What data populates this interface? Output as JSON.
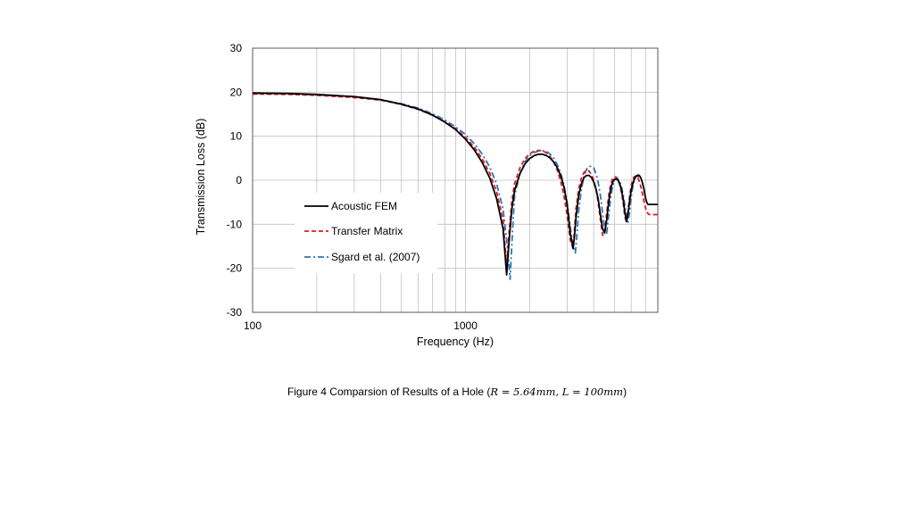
{
  "chart_data": {
    "type": "line",
    "xlabel": "Frequency (Hz)",
    "ylabel": "Transmission Loss (dB)",
    "x_scale": "log",
    "xlim": [
      100,
      8000
    ],
    "ylim": [
      -30,
      30
    ],
    "x_tick_labels": [
      "100",
      "1000"
    ],
    "y_ticks": [
      30,
      20,
      10,
      0,
      -10,
      -20,
      -30
    ],
    "grid": true,
    "legend_position": "lower-left",
    "series": [
      {
        "name": "Acoustic FEM",
        "color": "#000000",
        "style": "solid",
        "x": [
          100,
          150,
          200,
          300,
          400,
          500,
          600,
          700,
          800,
          900,
          1000,
          1100,
          1200,
          1300,
          1400,
          1500,
          1560,
          1600,
          1650,
          1700,
          1800,
          1900,
          2000,
          2100,
          2200,
          2300,
          2400,
          2500,
          2600,
          2700,
          2800,
          2900,
          3000,
          3100,
          3200,
          3250,
          3300,
          3400,
          3500,
          3600,
          3700,
          3800,
          3900,
          4000,
          4100,
          4200,
          4300,
          4400,
          4500,
          4600,
          4700,
          4800,
          4900,
          5000,
          5100,
          5200,
          5300,
          5400,
          5500,
          5600,
          5700,
          5800,
          5900,
          6000,
          6100,
          6200,
          6300,
          6400,
          6500,
          6600,
          6700,
          6800,
          6900,
          7000,
          7100,
          7200,
          7300,
          7400,
          7500,
          7600,
          7700,
          7800,
          7900,
          8000
        ],
        "y": [
          19.8,
          19.7,
          19.5,
          19.0,
          18.3,
          17.3,
          16.2,
          14.8,
          13.2,
          11.5,
          9.3,
          6.9,
          4.0,
          0.5,
          -4.2,
          -11.0,
          -21.5,
          -14.0,
          -6.5,
          -2.3,
          1.5,
          3.7,
          4.9,
          5.6,
          5.9,
          5.9,
          5.6,
          5.0,
          4.1,
          2.8,
          1.0,
          -1.6,
          -5.5,
          -12.0,
          -15.5,
          -12.5,
          -8.5,
          -3.5,
          -0.8,
          0.6,
          1.1,
          1.1,
          0.6,
          -0.4,
          -2.0,
          -4.3,
          -7.8,
          -11.0,
          -12.0,
          -9.0,
          -5.0,
          -2.0,
          -0.5,
          0.2,
          0.3,
          0.0,
          -0.8,
          -2.2,
          -4.3,
          -7.2,
          -9.4,
          -7.5,
          -4.5,
          -2.2,
          -0.8,
          0.2,
          0.8,
          1.1,
          1.2,
          0.9,
          0.2,
          -0.9,
          -2.3,
          -4.0,
          -5.0,
          -5.5,
          -5.5,
          -5.5,
          -5.5,
          -5.5,
          -5.5,
          -5.5,
          -5.5,
          -5.5
        ]
      },
      {
        "name": "Transfer Matrix",
        "color": "#e0191e",
        "style": "dashed",
        "x": [
          100,
          150,
          200,
          300,
          400,
          500,
          600,
          700,
          800,
          900,
          1000,
          1100,
          1200,
          1300,
          1400,
          1500,
          1560,
          1600,
          1650,
          1700,
          1800,
          1900,
          2000,
          2100,
          2200,
          2300,
          2400,
          2500,
          2600,
          2700,
          2800,
          2900,
          3000,
          3100,
          3200,
          3250,
          3300,
          3400,
          3500,
          3600,
          3700,
          3800,
          3900,
          4000,
          4100,
          4200,
          4300,
          4400,
          4500,
          4600,
          4700,
          4800,
          4900,
          5000,
          5100,
          5200,
          5300,
          5400,
          5500,
          5600,
          5700,
          5800,
          5900,
          6000,
          6100,
          6200,
          6300,
          6400,
          6500,
          6600,
          6700,
          6800,
          6900,
          7000,
          7100,
          7200,
          7300,
          7400,
          7500,
          7600,
          7700,
          7800,
          7900,
          8000
        ],
        "y": [
          19.6,
          19.5,
          19.3,
          18.8,
          18.2,
          17.2,
          16.1,
          14.8,
          13.3,
          11.7,
          9.7,
          7.5,
          4.8,
          1.6,
          -2.6,
          -9.0,
          -19.5,
          -12.0,
          -4.8,
          -0.8,
          2.8,
          4.9,
          6.0,
          6.6,
          6.8,
          6.7,
          6.2,
          5.3,
          4.0,
          2.2,
          -0.3,
          -3.5,
          -8.0,
          -13.5,
          -15.5,
          -11.0,
          -6.5,
          -2.0,
          0.5,
          1.8,
          2.2,
          2.1,
          1.3,
          0.0,
          -2.0,
          -5.0,
          -9.0,
          -12.5,
          -12.0,
          -7.5,
          -3.5,
          -1.0,
          0.3,
          0.8,
          0.7,
          0.2,
          -1.0,
          -2.8,
          -5.2,
          -8.2,
          -9.6,
          -6.8,
          -3.5,
          -1.2,
          0.2,
          0.8,
          1.0,
          0.8,
          0.2,
          -0.8,
          -2.0,
          -3.5,
          -5.0,
          -6.3,
          -7.2,
          -7.6,
          -7.8,
          -7.8,
          -7.8,
          -7.8,
          -7.8,
          -7.8,
          -7.8,
          -7.8
        ]
      },
      {
        "name": "Sgard et al. (2007)",
        "color": "#2e75b6",
        "style": "dash-dot",
        "x": [
          100,
          150,
          200,
          300,
          400,
          500,
          600,
          700,
          800,
          900,
          1000,
          1100,
          1200,
          1300,
          1400,
          1500,
          1580,
          1620,
          1660,
          1700,
          1800,
          1900,
          2000,
          2100,
          2200,
          2300,
          2400,
          2500,
          2600,
          2700,
          2800,
          2900,
          3000,
          3100,
          3200,
          3280,
          3350,
          3400,
          3500,
          3600,
          3700,
          3800,
          3900,
          4000,
          4100,
          4200,
          4300,
          4400,
          4500,
          4600,
          4700,
          4800,
          4900,
          5000,
          5100,
          5200,
          5300,
          5400,
          5500,
          5600,
          5700,
          5800,
          5900,
          6000,
          6100,
          6200,
          6300,
          6400,
          6500,
          6600
        ],
        "y": [
          19.7,
          19.6,
          19.4,
          19.0,
          18.3,
          17.4,
          16.4,
          15.1,
          13.7,
          12.1,
          10.4,
          8.3,
          5.9,
          3.0,
          -0.8,
          -6.5,
          -16.0,
          -22.5,
          -12.0,
          -3.5,
          1.5,
          4.2,
          5.6,
          6.3,
          6.6,
          6.7,
          6.5,
          5.9,
          4.9,
          3.5,
          1.6,
          -1.2,
          -5.0,
          -10.5,
          -15.0,
          -16.5,
          -11.0,
          -7.0,
          -2.0,
          1.0,
          2.5,
          3.1,
          3.2,
          2.8,
          1.5,
          -0.5,
          -3.5,
          -7.5,
          -11.0,
          -12.0,
          -8.0,
          -4.0,
          -1.5,
          0.0,
          0.5,
          0.3,
          -0.3,
          -1.5,
          -3.3,
          -5.7,
          -8.0,
          -9.5,
          -7.0,
          -3.8,
          -1.5,
          0.0,
          0.8,
          1.0,
          0.8,
          0.4
        ]
      }
    ]
  },
  "legend": {
    "items": [
      "Acoustic FEM",
      "Transfer Matrix",
      "Sgard et al. (2007)"
    ]
  },
  "caption": {
    "prefix": "Figure 4  Comparsion of Results of a Hole (",
    "math": "R = 5.64mm, L = 100mm",
    "suffix": ")"
  }
}
